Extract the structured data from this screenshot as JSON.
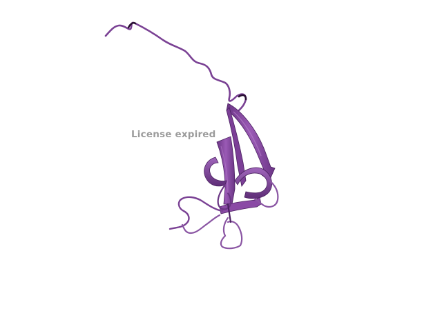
{
  "viewer": {
    "watermark": "License expired",
    "structure_icon": "protein-cartoon-icon",
    "ribbon_color": "#8a4aa5",
    "ribbon_dark": "#5a2a70",
    "ribbon_light": "#b07ac6",
    "background": "#ffffff"
  }
}
